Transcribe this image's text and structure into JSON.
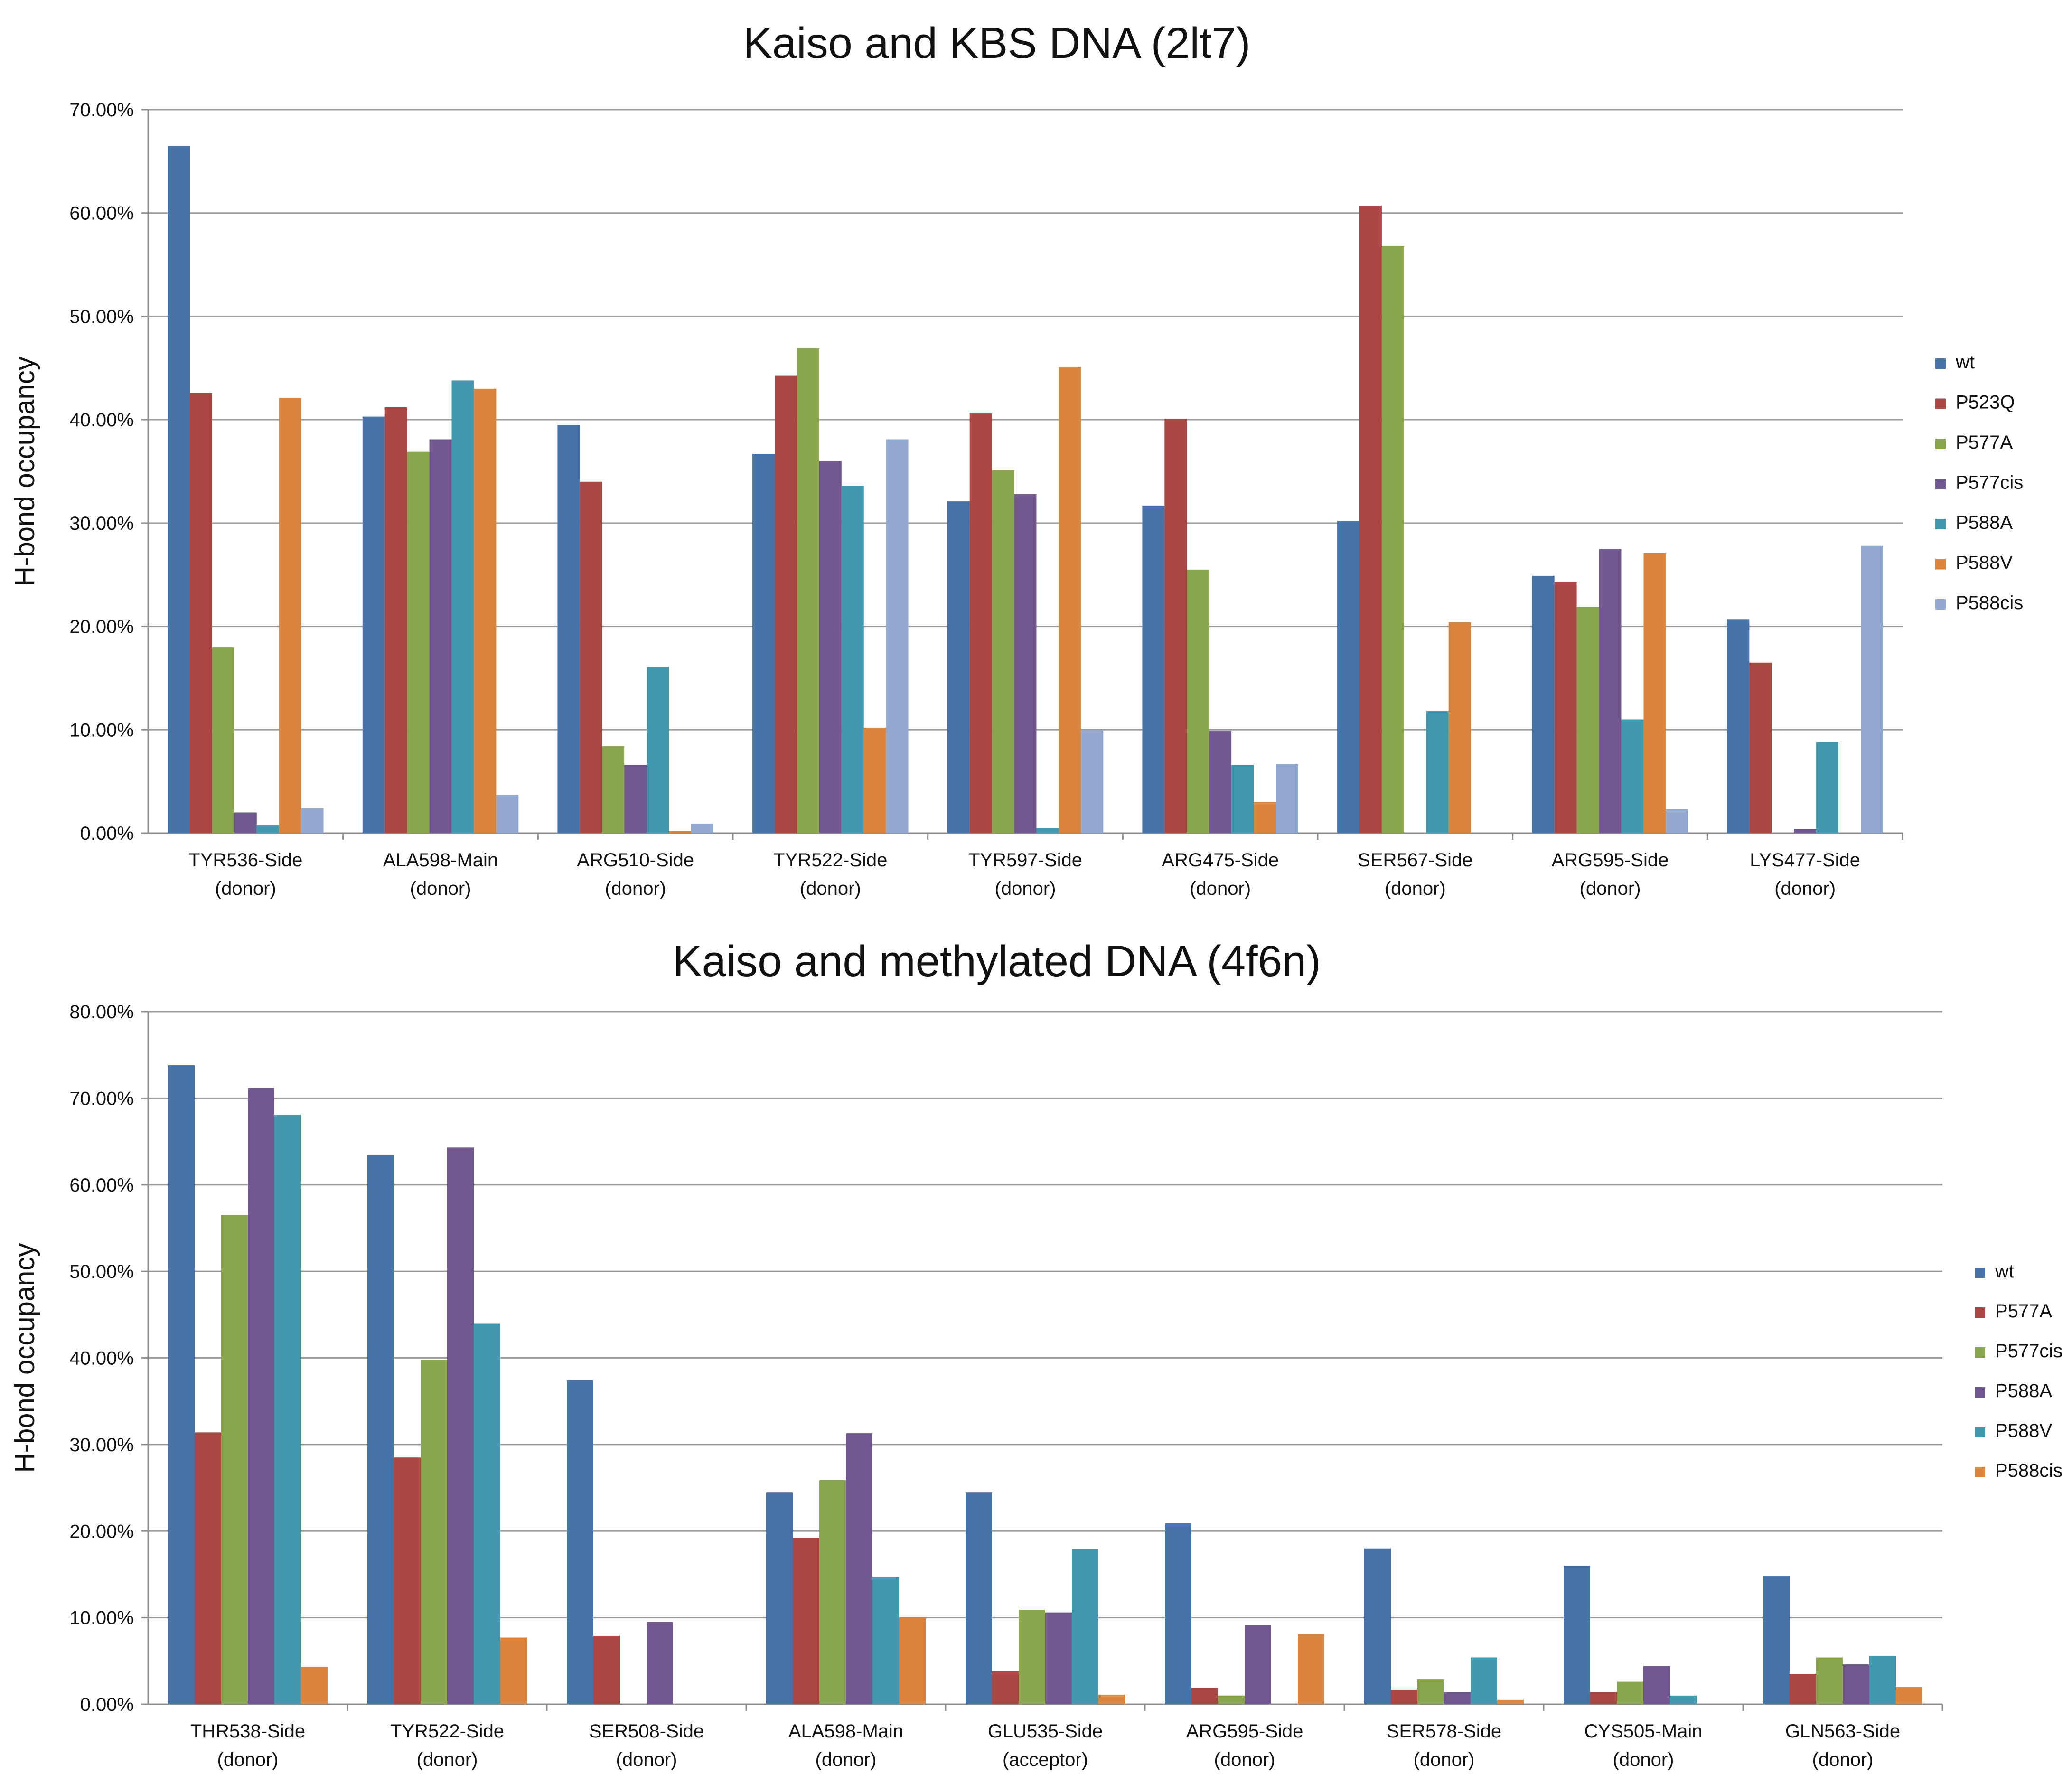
{
  "chart_data": [
    {
      "type": "bar",
      "title": "Kaiso and KBS DNA (2lt7)",
      "xlabel": "",
      "ylabel": "H-bond occupancy",
      "ylim": [
        0,
        70
      ],
      "yticks": [
        "0.00%",
        "10.00%",
        "20.00%",
        "30.00%",
        "40.00%",
        "50.00%",
        "60.00%",
        "70.00%"
      ],
      "categories": [
        [
          "TYR536-Side",
          "(donor)"
        ],
        [
          "ALA598-Main",
          "(donor)"
        ],
        [
          "ARG510-Side",
          "(donor)"
        ],
        [
          "TYR522-Side",
          "(donor)"
        ],
        [
          "TYR597-Side",
          "(donor)"
        ],
        [
          "ARG475-Side",
          "(donor)"
        ],
        [
          "SER567-Side",
          "(donor)"
        ],
        [
          "ARG595-Side",
          "(donor)"
        ],
        [
          "LYS477-Side",
          "(donor)"
        ]
      ],
      "series": [
        {
          "name": "wt",
          "color": "#4572a7",
          "values": [
            66.5,
            40.3,
            39.5,
            36.7,
            32.1,
            31.7,
            30.2,
            24.9,
            20.7
          ]
        },
        {
          "name": "P523Q",
          "color": "#aa4643",
          "values": [
            42.6,
            41.2,
            34.0,
            44.3,
            40.6,
            40.1,
            60.7,
            24.3,
            16.5
          ]
        },
        {
          "name": "P577A",
          "color": "#89a54e",
          "values": [
            18.0,
            36.9,
            8.4,
            46.9,
            35.1,
            25.5,
            56.8,
            21.9,
            0.0
          ]
        },
        {
          "name": "P577cis",
          "color": "#71588f",
          "values": [
            2.0,
            38.1,
            6.6,
            36.0,
            32.8,
            9.9,
            0.0,
            27.5,
            0.4
          ]
        },
        {
          "name": "P588A",
          "color": "#4198af",
          "values": [
            0.8,
            43.8,
            16.1,
            33.6,
            0.5,
            6.6,
            11.8,
            11.0,
            8.8
          ]
        },
        {
          "name": "P588V",
          "color": "#db843d",
          "values": [
            42.1,
            43.0,
            0.2,
            10.2,
            45.1,
            3.0,
            20.4,
            27.1,
            0.0
          ]
        },
        {
          "name": "P588cis",
          "color": "#93a9cf",
          "values": [
            2.4,
            3.7,
            0.9,
            38.1,
            10.0,
            6.7,
            0.0,
            2.3,
            27.8
          ]
        }
      ],
      "legend_position": "right"
    },
    {
      "type": "bar",
      "title": "Kaiso and methylated DNA (4f6n)",
      "xlabel": "",
      "ylabel": "H-bond occupancy",
      "ylim": [
        0,
        80
      ],
      "yticks": [
        "0.00%",
        "10.00%",
        "20.00%",
        "30.00%",
        "40.00%",
        "50.00%",
        "60.00%",
        "70.00%",
        "80.00%"
      ],
      "categories": [
        [
          "THR538-Side",
          "(donor)"
        ],
        [
          "TYR522-Side",
          "(donor)"
        ],
        [
          "SER508-Side",
          "(donor)"
        ],
        [
          "ALA598-Main",
          "(donor)"
        ],
        [
          "GLU535-Side",
          "(acceptor)"
        ],
        [
          "ARG595-Side",
          "(donor)"
        ],
        [
          "SER578-Side",
          "(donor)"
        ],
        [
          "CYS505-Main",
          "(donor)"
        ],
        [
          "GLN563-Side",
          "(donor)"
        ]
      ],
      "series": [
        {
          "name": "wt",
          "color": "#4572a7",
          "values": [
            73.8,
            63.5,
            37.4,
            24.5,
            24.5,
            20.9,
            18.0,
            16.0,
            14.8
          ]
        },
        {
          "name": "P577A",
          "color": "#aa4643",
          "values": [
            31.4,
            28.5,
            7.9,
            19.2,
            3.8,
            1.9,
            1.7,
            1.4,
            3.5
          ]
        },
        {
          "name": "P577cis",
          "color": "#89a54e",
          "values": [
            56.5,
            39.8,
            0.0,
            25.9,
            10.9,
            1.0,
            2.9,
            2.6,
            5.4
          ]
        },
        {
          "name": "P588A",
          "color": "#71588f",
          "values": [
            71.2,
            64.3,
            9.5,
            31.3,
            10.6,
            9.1,
            1.4,
            4.4,
            4.6
          ]
        },
        {
          "name": "P588V",
          "color": "#4198af",
          "values": [
            68.1,
            44.0,
            0.0,
            14.7,
            17.9,
            0.0,
            5.4,
            1.0,
            5.6
          ]
        },
        {
          "name": "P588cis",
          "color": "#db843d",
          "values": [
            4.3,
            7.7,
            0.0,
            10.0,
            1.1,
            8.1,
            0.5,
            0.0,
            2.0
          ]
        }
      ],
      "legend_position": "right"
    }
  ]
}
